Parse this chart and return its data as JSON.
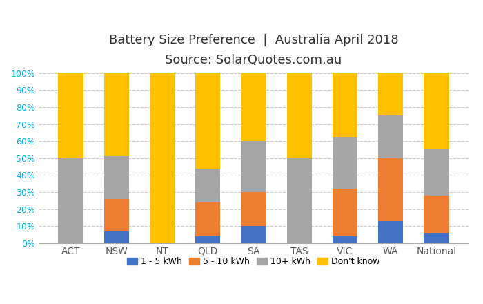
{
  "categories": [
    "ACT",
    "NSW",
    "NT",
    "QLD",
    "SA",
    "TAS",
    "VIC",
    "WA",
    "National"
  ],
  "series": {
    "1 - 5 kWh": [
      0,
      7,
      0,
      4,
      10,
      0,
      4,
      13,
      6
    ],
    "5 - 10 kWh": [
      0,
      19,
      0,
      20,
      20,
      0,
      28,
      37,
      22
    ],
    "10+ kWh": [
      50,
      25,
      0,
      20,
      30,
      50,
      30,
      25,
      27
    ],
    "Don't know": [
      50,
      49,
      100,
      56,
      40,
      50,
      38,
      25,
      45
    ]
  },
  "colors": {
    "1 - 5 kWh": "#4472C4",
    "5 - 10 kWh": "#ED7D31",
    "10+ kWh": "#A5A5A5",
    "Don't know": "#FFC000"
  },
  "title_line1": "Battery Size Preference  |  Australia April 2018",
  "title_line2": "Source: SolarQuotes.com.au",
  "ylim": [
    0,
    100
  ],
  "yticks": [
    0,
    10,
    20,
    30,
    40,
    50,
    60,
    70,
    80,
    90,
    100
  ],
  "background_color": "#FFFFFF",
  "grid_color": "#CCCCCC",
  "title_fontsize": 13,
  "subtitle_fontsize": 12,
  "tick_label_color": "#00B0F0",
  "bar_width": 0.55
}
